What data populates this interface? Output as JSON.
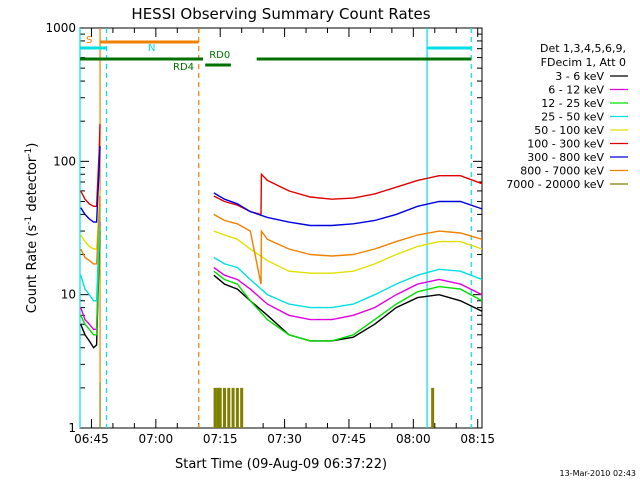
{
  "chart_data": {
    "type": "line",
    "title": "HESSI Observing Summary Count Rates",
    "xlabel": "Start Time (09-Aug-09 06:37:22)",
    "ylabel": "Count Rate (s⁻¹ detector⁻¹)",
    "ylabel_main": "Count Rate (s",
    "ylabel_sup1": "-1",
    "ylabel_mid": " detector",
    "ylabel_sup2": "-1",
    "ylabel_end": ")",
    "yscale": "log",
    "ylim": [
      1,
      1000
    ],
    "xlim_minutes": [
      6.33,
      100.0
    ],
    "yticks": [
      {
        "v": 1,
        "label": "1"
      },
      {
        "v": 10,
        "label": "10"
      },
      {
        "v": 100,
        "label": "100"
      },
      {
        "v": 1000,
        "label": "1000"
      }
    ],
    "xticks": [
      {
        "m": 9,
        "label": "06:45"
      },
      {
        "m": 24,
        "label": "07:00"
      },
      {
        "m": 39,
        "label": "07:15"
      },
      {
        "m": 54,
        "label": "07:30"
      },
      {
        "m": 69,
        "label": "07:45"
      },
      {
        "m": 84,
        "label": "08:00"
      },
      {
        "m": 99,
        "label": "08:15"
      }
    ],
    "legend_title": [
      "Det 1,3,4,5,6,9,",
      "FDecim 1, Att 0"
    ],
    "legend_position": "right",
    "series": [
      {
        "name": "3 - 6 keV",
        "color": "#000000",
        "values": [
          [
            6.5,
            6
          ],
          [
            7.5,
            5
          ],
          [
            8.5,
            4.5
          ],
          [
            9.5,
            4
          ],
          [
            10.2,
            4.2
          ],
          [
            10.8,
            20
          ],
          [
            11.0,
            30
          ],
          [
            18,
            null
          ],
          [
            37.5,
            14
          ],
          [
            40,
            12
          ],
          [
            43,
            11
          ],
          [
            46,
            9
          ],
          [
            50,
            7
          ],
          [
            55,
            5
          ],
          [
            60,
            4.5
          ],
          [
            65,
            4.5
          ],
          [
            70,
            4.8
          ],
          [
            75,
            6
          ],
          [
            80,
            8
          ],
          [
            85,
            9.5
          ],
          [
            90,
            10
          ],
          [
            95,
            9
          ],
          [
            100,
            7.5
          ]
        ]
      },
      {
        "name": "6 - 12 keV",
        "color": "#e000e0",
        "values": [
          [
            6.5,
            8
          ],
          [
            7.5,
            6.5
          ],
          [
            8.5,
            6
          ],
          [
            9.5,
            5.5
          ],
          [
            10.2,
            5.5
          ],
          [
            10.8,
            25
          ],
          [
            11.0,
            35
          ],
          [
            18,
            null
          ],
          [
            37.5,
            16
          ],
          [
            40,
            14
          ],
          [
            43,
            13
          ],
          [
            46,
            11
          ],
          [
            50,
            8.5
          ],
          [
            55,
            7
          ],
          [
            60,
            6.5
          ],
          [
            65,
            6.5
          ],
          [
            70,
            7
          ],
          [
            75,
            8
          ],
          [
            80,
            10
          ],
          [
            85,
            12
          ],
          [
            90,
            13
          ],
          [
            95,
            12
          ],
          [
            100,
            10
          ]
        ]
      },
      {
        "name": "12 - 25 keV",
        "color": "#00e000",
        "values": [
          [
            6.5,
            7
          ],
          [
            7.5,
            6
          ],
          [
            8.5,
            5.5
          ],
          [
            9.5,
            5
          ],
          [
            10.2,
            5
          ],
          [
            10.8,
            22
          ],
          [
            11.0,
            32
          ],
          [
            18,
            null
          ],
          [
            37.5,
            15
          ],
          [
            40,
            13
          ],
          [
            43,
            12
          ],
          [
            46,
            9
          ],
          [
            50,
            6.5
          ],
          [
            55,
            5
          ],
          [
            60,
            4.5
          ],
          [
            65,
            4.5
          ],
          [
            70,
            5
          ],
          [
            75,
            6.5
          ],
          [
            80,
            8.5
          ],
          [
            85,
            10.5
          ],
          [
            90,
            11.5
          ],
          [
            95,
            11
          ],
          [
            100,
            9
          ]
        ]
      },
      {
        "name": "25 - 50 keV",
        "color": "#00e0e0",
        "values": [
          [
            6.5,
            14
          ],
          [
            7.5,
            11
          ],
          [
            8.5,
            10
          ],
          [
            9.5,
            9
          ],
          [
            10.2,
            9
          ],
          [
            10.8,
            30
          ],
          [
            11.0,
            45
          ],
          [
            18,
            null
          ],
          [
            37.5,
            19
          ],
          [
            40,
            17
          ],
          [
            43,
            16
          ],
          [
            46,
            13
          ],
          [
            50,
            10
          ],
          [
            55,
            8.5
          ],
          [
            60,
            8
          ],
          [
            65,
            8
          ],
          [
            70,
            8.5
          ],
          [
            75,
            10
          ],
          [
            80,
            12
          ],
          [
            85,
            14
          ],
          [
            90,
            15.5
          ],
          [
            95,
            15
          ],
          [
            100,
            13
          ]
        ]
      },
      {
        "name": "50 - 100 keV",
        "color": "#e0e000",
        "values": [
          [
            6.5,
            28
          ],
          [
            7.5,
            25
          ],
          [
            8.5,
            23
          ],
          [
            9.5,
            22
          ],
          [
            10.2,
            22
          ],
          [
            10.8,
            45
          ],
          [
            11.0,
            60
          ],
          [
            18,
            null
          ],
          [
            37.5,
            30
          ],
          [
            40,
            28
          ],
          [
            43,
            26
          ],
          [
            46,
            22
          ],
          [
            50,
            18
          ],
          [
            55,
            15
          ],
          [
            60,
            14.5
          ],
          [
            65,
            14.5
          ],
          [
            70,
            15
          ],
          [
            75,
            17
          ],
          [
            80,
            20
          ],
          [
            85,
            23
          ],
          [
            90,
            25
          ],
          [
            95,
            25
          ],
          [
            100,
            22
          ]
        ]
      },
      {
        "name": "100 - 300 keV",
        "color": "#e00000",
        "values": [
          [
            6.5,
            60
          ],
          [
            7.5,
            52
          ],
          [
            8.5,
            48
          ],
          [
            9.5,
            46
          ],
          [
            10.2,
            46
          ],
          [
            10.8,
            120
          ],
          [
            11.0,
            190
          ],
          [
            18,
            null
          ],
          [
            37.5,
            55
          ],
          [
            40,
            50
          ],
          [
            43,
            47
          ],
          [
            46,
            42
          ],
          [
            48.5,
            40
          ],
          [
            48.6,
            80
          ],
          [
            50,
            72
          ],
          [
            55,
            60
          ],
          [
            60,
            54
          ],
          [
            65,
            52
          ],
          [
            70,
            53
          ],
          [
            75,
            57
          ],
          [
            80,
            64
          ],
          [
            85,
            72
          ],
          [
            90,
            78
          ],
          [
            95,
            78
          ],
          [
            100,
            68
          ]
        ]
      },
      {
        "name": "300 - 800 keV",
        "color": "#0000e0",
        "values": [
          [
            6.5,
            45
          ],
          [
            7.5,
            40
          ],
          [
            8.5,
            37
          ],
          [
            9.5,
            35
          ],
          [
            10.2,
            35
          ],
          [
            10.8,
            90
          ],
          [
            11.0,
            130
          ],
          [
            18,
            null
          ],
          [
            37.5,
            58
          ],
          [
            40,
            52
          ],
          [
            43,
            48
          ],
          [
            46,
            42
          ],
          [
            50,
            38
          ],
          [
            55,
            35
          ],
          [
            60,
            33
          ],
          [
            65,
            33
          ],
          [
            70,
            34
          ],
          [
            75,
            36
          ],
          [
            80,
            40
          ],
          [
            85,
            46
          ],
          [
            90,
            50
          ],
          [
            95,
            50
          ],
          [
            100,
            44
          ]
        ]
      },
      {
        "name": "800 - 7000 keV",
        "color": "#f08000",
        "values": [
          [
            6.5,
            22
          ],
          [
            7.5,
            19
          ],
          [
            8.5,
            18
          ],
          [
            9.5,
            17
          ],
          [
            10.2,
            17
          ],
          [
            10.8,
            40
          ],
          [
            11.0,
            55
          ],
          [
            18,
            null
          ],
          [
            37.5,
            40
          ],
          [
            40,
            36
          ],
          [
            43,
            34
          ],
          [
            46,
            30
          ],
          [
            48.5,
            12
          ],
          [
            48.6,
            30
          ],
          [
            50,
            26
          ],
          [
            55,
            22
          ],
          [
            60,
            20
          ],
          [
            65,
            19.5
          ],
          [
            70,
            20
          ],
          [
            75,
            22
          ],
          [
            80,
            25
          ],
          [
            85,
            28
          ],
          [
            90,
            30
          ],
          [
            95,
            29
          ],
          [
            100,
            26
          ]
        ]
      },
      {
        "name": "7000 - 20000 keV",
        "color": "#808000",
        "values": [
          [
            37.8,
            2
          ],
          [
            38.5,
            2
          ],
          [
            39,
            2
          ],
          [
            40,
            2
          ],
          [
            41,
            2
          ],
          [
            42,
            2
          ],
          [
            43,
            2
          ],
          [
            44,
            2
          ],
          [
            88.5,
            2
          ]
        ]
      }
    ],
    "coverage_bars": [
      {
        "label": "S",
        "color": "#f08000",
        "start_min": 11.0,
        "end_min": 34.0
      },
      {
        "label": "N",
        "color": "#00e0e0",
        "start_min": 6.33,
        "end_min": 12.5
      },
      {
        "label": "N",
        "color": "#00e0e0",
        "start_min": 87.2,
        "end_min": 97.5
      },
      {
        "label": "RD0",
        "color": "#007000",
        "start_min": 35.5,
        "end_min": 41.5
      },
      {
        "label": "RD4",
        "color": "#007000",
        "start_min": 6.33,
        "end_min": 35.0
      },
      {
        "label": "",
        "color": "#007000",
        "start_min": 47.5,
        "end_min": 97.5
      }
    ],
    "vertical_lines": [
      {
        "min": 12.5,
        "color": "#00e0e0",
        "style": "dashed"
      },
      {
        "min": 11.0,
        "color": "#f08000",
        "style": "solid"
      },
      {
        "min": 34.0,
        "color": "#f08000",
        "style": "dashed"
      },
      {
        "min": 6.33,
        "color": "#00e0e0",
        "style": "solid"
      },
      {
        "min": 87.2,
        "color": "#00e0e0",
        "style": "solid"
      },
      {
        "min": 97.5,
        "color": "#00e0e0",
        "style": "dashed"
      }
    ]
  },
  "footer_timestamp": "13-Mar-2010 02:43"
}
